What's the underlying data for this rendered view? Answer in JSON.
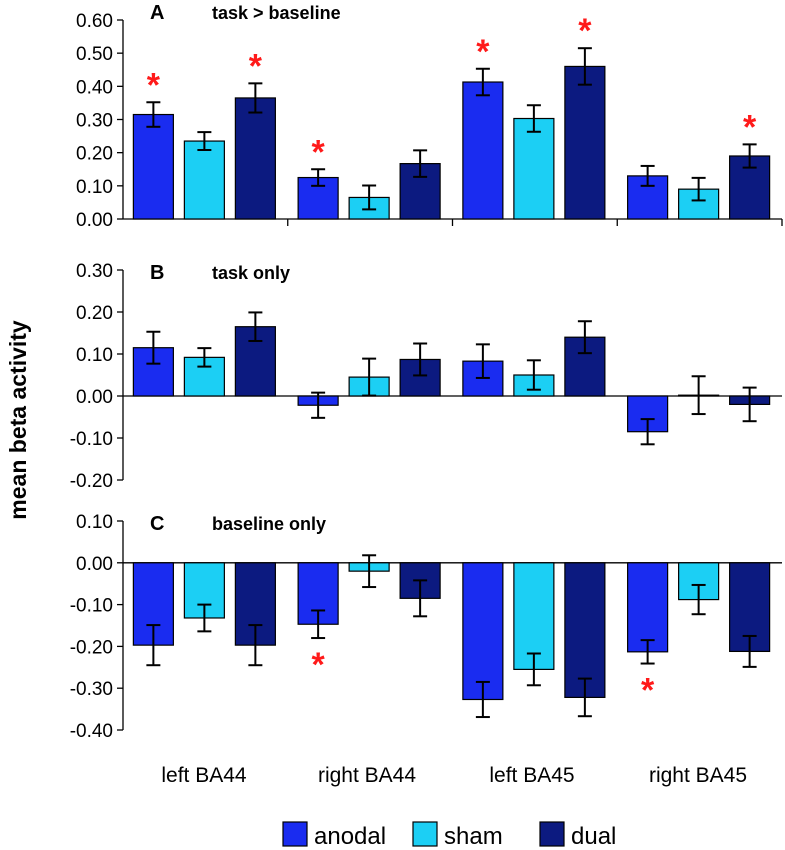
{
  "colors": {
    "anodal": "#1a2cf0",
    "sham": "#1ccff4",
    "dual": "#0c1a80",
    "significance": "#ff1a1a"
  },
  "chart_data": {
    "type": "bar",
    "ylabel": "mean beta activity",
    "categories": [
      "left BA44",
      "right BA44",
      "left BA45",
      "right BA45"
    ],
    "legend": [
      {
        "key": "anodal",
        "label": "anodal"
      },
      {
        "key": "sham",
        "label": "sham"
      },
      {
        "key": "dual",
        "label": "dual"
      }
    ],
    "significance_symbol": "*",
    "panels": [
      {
        "letter": "A",
        "title": "task > baseline",
        "ylim": [
          0.0,
          0.6
        ],
        "ticks": [
          {
            "v": 0.6,
            "label": "0.60"
          },
          {
            "v": 0.5,
            "label": "0.50"
          },
          {
            "v": 0.4,
            "label": "0.40"
          },
          {
            "v": 0.3,
            "label": "0.30"
          },
          {
            "v": 0.2,
            "label": "0.20"
          },
          {
            "v": 0.1,
            "label": "0.10"
          },
          {
            "v": 0.0,
            "label": "0.00"
          }
        ],
        "series": [
          {
            "name": "anodal",
            "values": [
              0.315,
              0.125,
              0.413,
              0.13
            ],
            "errors": [
              0.037,
              0.025,
              0.04,
              0.03
            ],
            "significant": [
              true,
              true,
              true,
              false
            ]
          },
          {
            "name": "sham",
            "values": [
              0.235,
              0.065,
              0.303,
              0.09
            ],
            "errors": [
              0.027,
              0.036,
              0.04,
              0.034
            ],
            "significant": [
              false,
              false,
              false,
              false
            ]
          },
          {
            "name": "dual",
            "values": [
              0.365,
              0.167,
              0.46,
              0.19
            ],
            "errors": [
              0.044,
              0.04,
              0.055,
              0.035
            ],
            "significant": [
              true,
              false,
              true,
              true
            ]
          }
        ]
      },
      {
        "letter": "B",
        "title": "task only",
        "ylim": [
          -0.2,
          0.3
        ],
        "ticks": [
          {
            "v": 0.3,
            "label": "0.30"
          },
          {
            "v": 0.2,
            "label": "0.20"
          },
          {
            "v": 0.1,
            "label": "0.10"
          },
          {
            "v": 0.0,
            "label": "0.00"
          },
          {
            "v": -0.1,
            "label": "-0.10"
          },
          {
            "v": -0.2,
            "label": "-0.20"
          }
        ],
        "series": [
          {
            "name": "anodal",
            "values": [
              0.115,
              -0.022,
              0.083,
              -0.085
            ],
            "errors": [
              0.038,
              0.03,
              0.04,
              0.03
            ],
            "significant": [
              false,
              false,
              false,
              false
            ]
          },
          {
            "name": "sham",
            "values": [
              0.092,
              0.045,
              0.05,
              0.002
            ],
            "errors": [
              0.022,
              0.044,
              0.035,
              0.045
            ],
            "significant": [
              false,
              false,
              false,
              false
            ]
          },
          {
            "name": "dual",
            "values": [
              0.165,
              0.087,
              0.14,
              -0.02
            ],
            "errors": [
              0.034,
              0.038,
              0.038,
              0.04
            ],
            "significant": [
              false,
              false,
              false,
              false
            ]
          }
        ]
      },
      {
        "letter": "C",
        "title": "baseline only",
        "ylim": [
          -0.4,
          0.1
        ],
        "ticks": [
          {
            "v": 0.1,
            "label": "0.10"
          },
          {
            "v": 0.0,
            "label": "0.00"
          },
          {
            "v": -0.1,
            "label": "-0.10"
          },
          {
            "v": -0.2,
            "label": "-0.20"
          },
          {
            "v": -0.3,
            "label": "-0.30"
          },
          {
            "v": -0.4,
            "label": "-0.40"
          }
        ],
        "series": [
          {
            "name": "anodal",
            "values": [
              -0.197,
              -0.147,
              -0.327,
              -0.213
            ],
            "errors": [
              0.048,
              0.033,
              0.042,
              0.028
            ],
            "significant": [
              false,
              true,
              false,
              true
            ]
          },
          {
            "name": "sham",
            "values": [
              -0.132,
              -0.02,
              -0.255,
              -0.088
            ],
            "errors": [
              0.032,
              0.038,
              0.038,
              0.035
            ],
            "significant": [
              false,
              false,
              false,
              false
            ]
          },
          {
            "name": "dual",
            "values": [
              -0.197,
              -0.085,
              -0.322,
              -0.212
            ],
            "errors": [
              0.048,
              0.043,
              0.045,
              0.037
            ],
            "significant": [
              false,
              false,
              false,
              false
            ]
          }
        ]
      }
    ]
  }
}
